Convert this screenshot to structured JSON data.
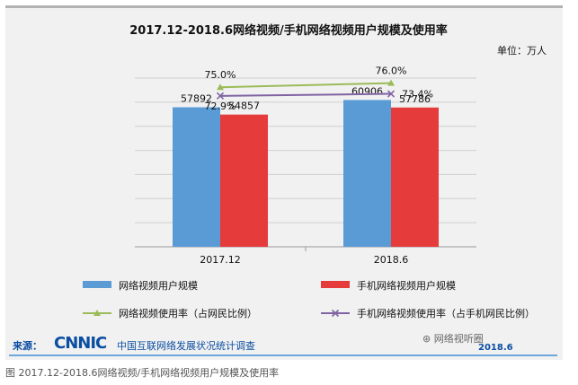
{
  "chart_data": {
    "type": "bar",
    "title": "2017.12-2018.6网络视频/手机网络视频用户规模及使用率",
    "unit_label": "单位：万人",
    "categories": [
      "2017.12",
      "2018.6"
    ],
    "ylim": [
      0,
      70000
    ],
    "series": [
      {
        "name": "网络视频用户规模",
        "type": "bar",
        "values": [
          57892,
          60906
        ],
        "labels": [
          "57892",
          "60906"
        ],
        "color": "#5b9bd5"
      },
      {
        "name": "手机网络视频用户规模",
        "type": "bar",
        "values": [
          54857,
          57786
        ],
        "labels": [
          "54857",
          "57786"
        ],
        "color": "#e53b3b"
      },
      {
        "name": "网络视频使用率（占网民比例）",
        "type": "line",
        "values": [
          75.0,
          76.0
        ],
        "labels": [
          "75.0%",
          "76.0%"
        ],
        "color": "#9bbb59",
        "marker": "triangle"
      },
      {
        "name": "手机网络视频使用率（占手机网民比例）",
        "type": "line",
        "values": [
          72.9,
          73.4
        ],
        "labels": [
          "72.9%",
          "73.4%"
        ],
        "color": "#8064a2",
        "marker": "x"
      }
    ]
  },
  "source": {
    "label": "来源：",
    "logo": "CNNIC",
    "org": "中国互联网络发展状况统计调查",
    "date": "2018.6"
  },
  "watermark_text": "网络视听圈",
  "caption": "图 2017.12-2018.6网络视频/手机网络视频用户规模及使用率"
}
